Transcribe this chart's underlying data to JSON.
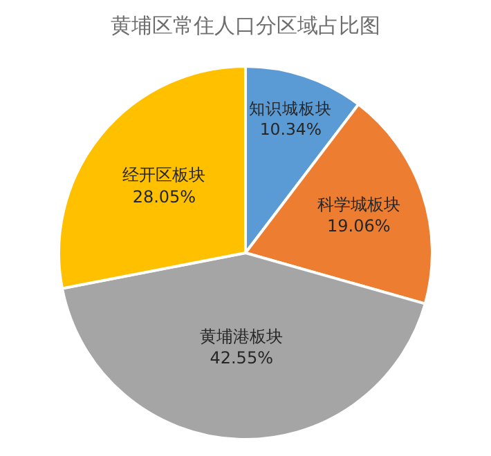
{
  "chart_data": {
    "type": "pie",
    "title": "黄埔区常住人口分区域占比图",
    "categories": [
      "知识城板块",
      "科学城板块",
      "黄埔港板块",
      "经开区板块"
    ],
    "values": [
      10.34,
      19.06,
      42.55,
      28.05
    ],
    "value_labels": [
      "10.34%",
      "19.06%",
      "42.55%",
      "28.05%"
    ],
    "colors": [
      "#5b9bd5",
      "#ed7d31",
      "#a5a5a5",
      "#ffc000"
    ],
    "legend": false
  }
}
